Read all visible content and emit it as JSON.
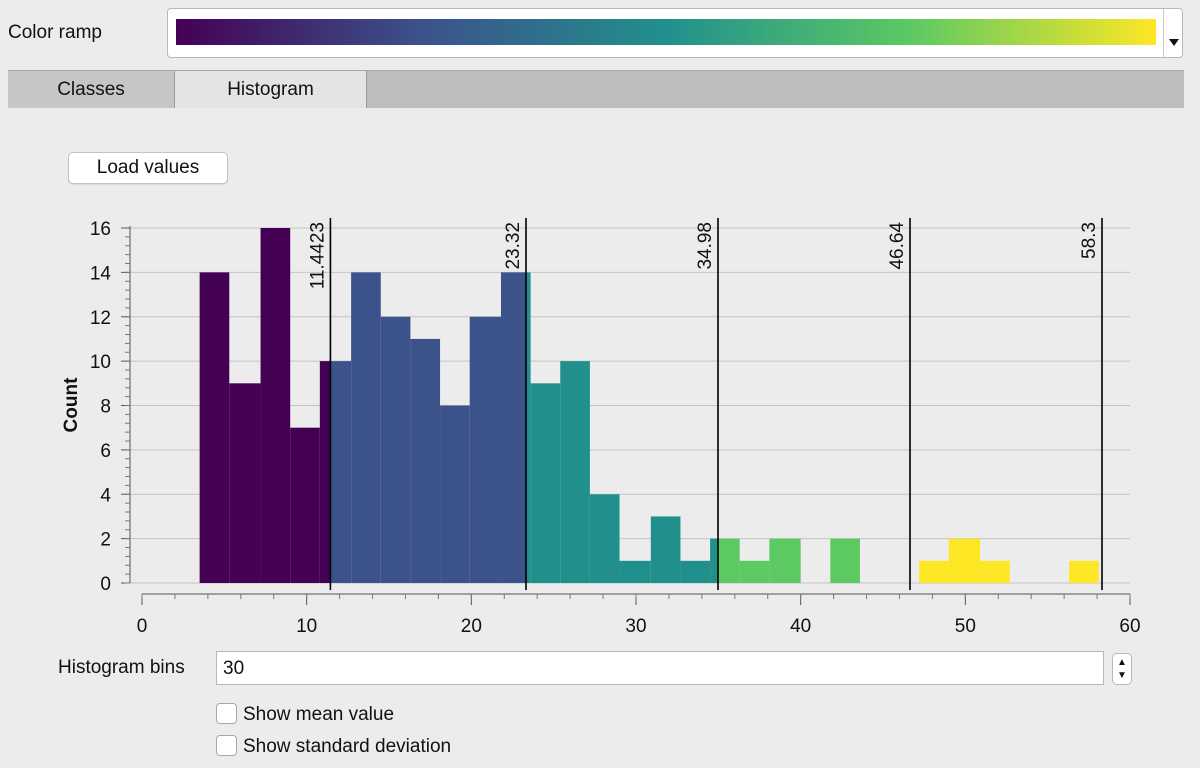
{
  "color_ramp": {
    "label": "Color ramp",
    "stops": [
      "#440154",
      "#3b528b",
      "#21908d",
      "#5dc963",
      "#fde725"
    ]
  },
  "tabs": [
    {
      "label": "Classes",
      "active": false
    },
    {
      "label": "Histogram",
      "active": true
    }
  ],
  "load_button": {
    "label": "Load values"
  },
  "chart_data": {
    "type": "bar",
    "ylabel": "Count",
    "xlabel": "",
    "xlim": [
      0,
      60
    ],
    "ylim": [
      0,
      16
    ],
    "x_ticks": [
      0,
      10,
      20,
      30,
      40,
      50,
      60
    ],
    "y_ticks": [
      0,
      2,
      4,
      6,
      8,
      10,
      12,
      14,
      16
    ],
    "grid": true,
    "bins": [
      {
        "x0": 3.5,
        "x1": 5.3,
        "count": 14,
        "color": "#440154"
      },
      {
        "x0": 5.3,
        "x1": 7.2,
        "count": 9,
        "color": "#440154"
      },
      {
        "x0": 7.2,
        "x1": 9.0,
        "count": 16,
        "color": "#440154"
      },
      {
        "x0": 9.0,
        "x1": 10.8,
        "count": 7,
        "color": "#440154"
      },
      {
        "x0": 10.8,
        "x1": 11.44,
        "count": 10,
        "color": "#440154"
      },
      {
        "x0": 11.44,
        "x1": 12.7,
        "count": 10,
        "color": "#3b528b"
      },
      {
        "x0": 12.7,
        "x1": 14.5,
        "count": 14,
        "color": "#3b528b"
      },
      {
        "x0": 14.5,
        "x1": 16.3,
        "count": 12,
        "color": "#3b528b"
      },
      {
        "x0": 16.3,
        "x1": 18.1,
        "count": 11,
        "color": "#3b528b"
      },
      {
        "x0": 18.1,
        "x1": 19.9,
        "count": 8,
        "color": "#3b528b"
      },
      {
        "x0": 19.9,
        "x1": 21.8,
        "count": 12,
        "color": "#3b528b"
      },
      {
        "x0": 21.8,
        "x1": 23.32,
        "count": 14,
        "color": "#3b528b"
      },
      {
        "x0": 23.32,
        "x1": 23.6,
        "count": 14,
        "color": "#21908d"
      },
      {
        "x0": 23.6,
        "x1": 25.4,
        "count": 9,
        "color": "#21908d"
      },
      {
        "x0": 25.4,
        "x1": 27.2,
        "count": 10,
        "color": "#21908d"
      },
      {
        "x0": 27.2,
        "x1": 29.0,
        "count": 4,
        "color": "#21908d"
      },
      {
        "x0": 29.0,
        "x1": 30.9,
        "count": 1,
        "color": "#21908d"
      },
      {
        "x0": 30.9,
        "x1": 32.7,
        "count": 3,
        "color": "#21908d"
      },
      {
        "x0": 32.7,
        "x1": 34.5,
        "count": 1,
        "color": "#21908d"
      },
      {
        "x0": 34.5,
        "x1": 34.98,
        "count": 2,
        "color": "#21908d"
      },
      {
        "x0": 34.98,
        "x1": 36.3,
        "count": 2,
        "color": "#5dc963"
      },
      {
        "x0": 36.3,
        "x1": 38.1,
        "count": 1,
        "color": "#5dc963"
      },
      {
        "x0": 38.1,
        "x1": 40.0,
        "count": 2,
        "color": "#5dc963"
      },
      {
        "x0": 41.8,
        "x1": 43.6,
        "count": 2,
        "color": "#5dc963"
      },
      {
        "x0": 47.2,
        "x1": 49.0,
        "count": 1,
        "color": "#fde725"
      },
      {
        "x0": 49.0,
        "x1": 50.9,
        "count": 2,
        "color": "#fde725"
      },
      {
        "x0": 50.9,
        "x1": 52.7,
        "count": 1,
        "color": "#fde725"
      },
      {
        "x0": 56.3,
        "x1": 58.1,
        "count": 1,
        "color": "#fde725"
      }
    ],
    "class_breaks": [
      {
        "value": 11.4423,
        "label": "11.4423"
      },
      {
        "value": 23.32,
        "label": "23.32"
      },
      {
        "value": 34.98,
        "label": "34.98"
      },
      {
        "value": 46.64,
        "label": "46.64"
      },
      {
        "value": 58.3,
        "label": "58.3"
      }
    ]
  },
  "bins_field": {
    "label": "Histogram bins",
    "value": "30"
  },
  "options": {
    "show_mean": {
      "label": "Show mean value",
      "checked": false
    },
    "show_std": {
      "label": "Show standard deviation",
      "checked": false
    }
  }
}
